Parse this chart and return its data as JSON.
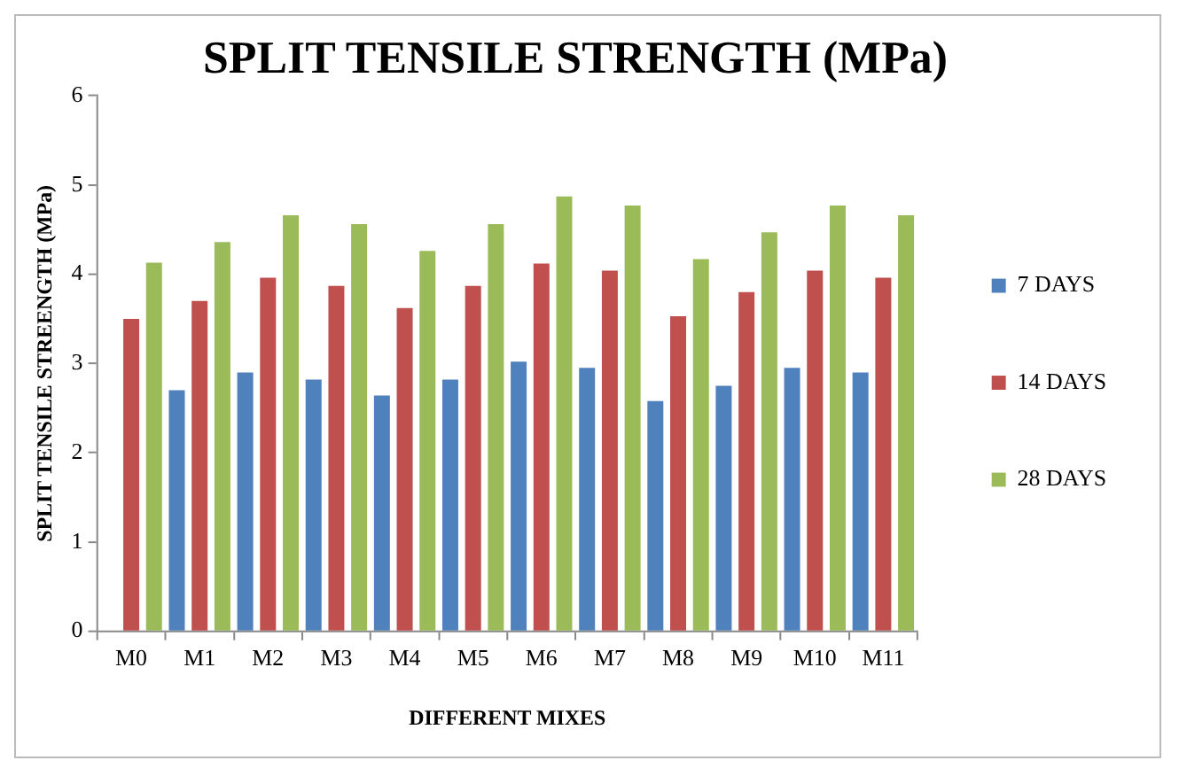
{
  "chart_data": {
    "type": "bar",
    "title": "SPLIT TENSILE STRENGTH (MPa)",
    "xlabel": "DIFFERENT MIXES",
    "ylabel": "SPLIT TENSILE STREENGTH (MPa)",
    "categories": [
      "M0",
      "M1",
      "M2",
      "M3",
      "M4",
      "M5",
      "M6",
      "M7",
      "M8",
      "M9",
      "M10",
      "M11"
    ],
    "series": [
      {
        "name": "7 DAYS",
        "color": "#4f81bd",
        "values": [
          null,
          2.7,
          2.9,
          2.82,
          2.64,
          2.82,
          3.02,
          2.95,
          2.58,
          2.75,
          2.95,
          2.9
        ]
      },
      {
        "name": "14 DAYS",
        "color": "#c0504d",
        "values": [
          3.5,
          3.7,
          3.96,
          3.87,
          3.62,
          3.87,
          4.12,
          4.04,
          3.53,
          3.8,
          4.04,
          3.96
        ]
      },
      {
        "name": "28 DAYS",
        "color": "#9bbb59",
        "values": [
          4.13,
          4.36,
          4.66,
          4.56,
          4.26,
          4.56,
          4.87,
          4.77,
          4.17,
          4.47,
          4.77,
          4.66
        ]
      }
    ],
    "ylim": [
      0,
      6
    ],
    "yticks": [
      0,
      1,
      2,
      3,
      4,
      5,
      6
    ],
    "grid": false,
    "legend": "right"
  }
}
